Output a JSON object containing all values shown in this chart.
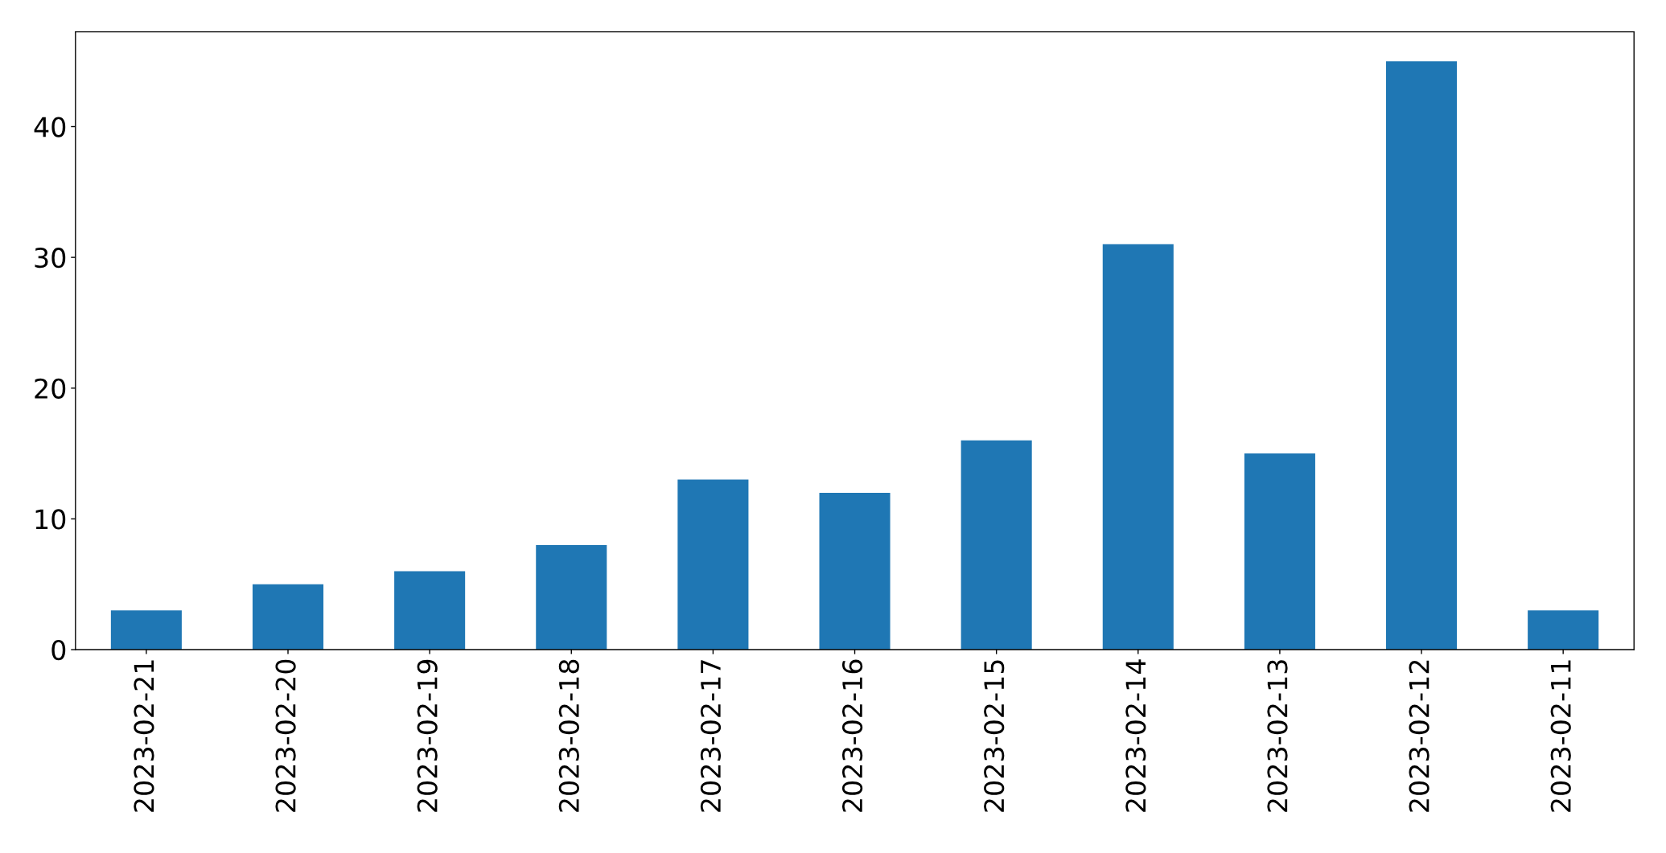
{
  "chart_data": {
    "type": "bar",
    "categories": [
      "2023-02-21",
      "2023-02-20",
      "2023-02-19",
      "2023-02-18",
      "2023-02-17",
      "2023-02-16",
      "2023-02-15",
      "2023-02-14",
      "2023-02-13",
      "2023-02-12",
      "2023-02-11"
    ],
    "values": [
      3,
      5,
      6,
      8,
      13,
      12,
      16,
      31,
      15,
      45,
      3
    ],
    "color": "#1f77b4",
    "ylim": [
      0,
      47.25
    ],
    "yticks": [
      0,
      10,
      20,
      30,
      40
    ]
  }
}
